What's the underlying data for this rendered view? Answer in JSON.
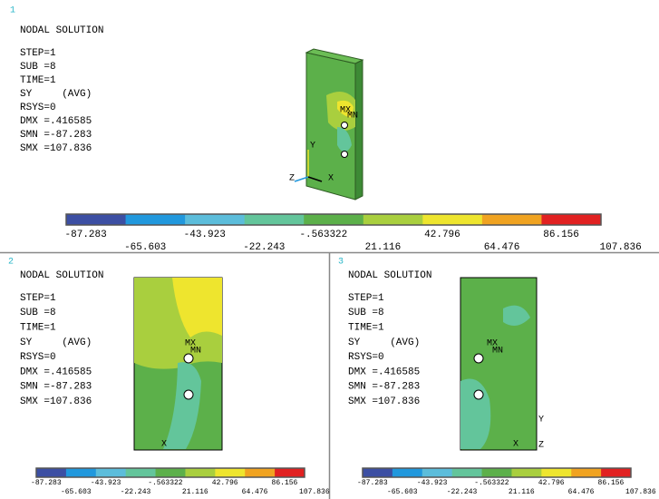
{
  "panels": [
    {
      "number": "1",
      "title": "NODAL SOLUTION",
      "info": [
        "STEP=1",
        "SUB =8",
        "TIME=1",
        "SY     (AVG)",
        "RSYS=0",
        "DMX =.416585",
        "SMN =-87.283",
        "SMX =107.836"
      ],
      "model_labels": [
        "MX",
        "MN",
        "Y",
        "Z",
        "X"
      ],
      "legend": {
        "labels": [
          "-87.283",
          "-65.603",
          "-43.923",
          "-22.243",
          "-.563322",
          "21.116",
          "42.796",
          "64.476",
          "86.156",
          "107.836"
        ],
        "colors": [
          "#3c4fa3",
          "#2198dd",
          "#5cbddb",
          "#63c59b",
          "#5cb04a",
          "#a9cf3e",
          "#eee52e",
          "#f0a321",
          "#e12121"
        ]
      }
    },
    {
      "number": "2",
      "title": "NODAL SOLUTION",
      "info": [
        "STEP=1",
        "SUB =8",
        "TIME=1",
        "SY     (AVG)",
        "RSYS=0",
        "DMX =.416585",
        "SMN =-87.283",
        "SMX =107.836"
      ],
      "model_labels": [
        "MX",
        "MN",
        "X"
      ],
      "legend": {
        "labels": [
          "-87.283",
          "-65.603",
          "-43.923",
          "-22.243",
          "-.563322",
          "21.116",
          "42.796",
          "64.476",
          "86.156",
          "107.836"
        ],
        "colors": [
          "#3c4fa3",
          "#2198dd",
          "#5cbddb",
          "#63c59b",
          "#5cb04a",
          "#a9cf3e",
          "#eee52e",
          "#f0a321",
          "#e12121"
        ]
      }
    },
    {
      "number": "3",
      "title": "NODAL SOLUTION",
      "info": [
        "STEP=1",
        "SUB =8",
        "TIME=1",
        "SY     (AVG)",
        "RSYS=0",
        "DMX =.416585",
        "SMN =-87.283",
        "SMX =107.836"
      ],
      "model_labels": [
        "MX",
        "MN",
        "Y",
        "X",
        "Z"
      ],
      "legend": {
        "labels": [
          "-87.283",
          "-65.603",
          "-43.923",
          "-22.243",
          "-.563322",
          "21.116",
          "42.796",
          "64.476",
          "86.156",
          "107.836"
        ],
        "colors": [
          "#3c4fa3",
          "#2198dd",
          "#5cbddb",
          "#63c59b",
          "#5cb04a",
          "#a9cf3e",
          "#eee52e",
          "#f0a321",
          "#e12121"
        ]
      }
    }
  ]
}
